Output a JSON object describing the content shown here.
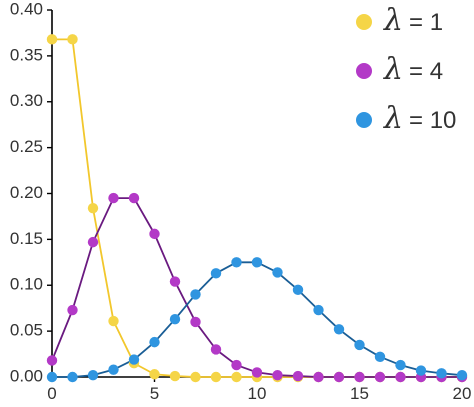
{
  "chart_data": {
    "type": "line",
    "title": "",
    "xlabel": "",
    "ylabel": "",
    "xlim": [
      0,
      20
    ],
    "ylim": [
      0,
      0.4
    ],
    "xticks": [
      0,
      5,
      10,
      15,
      20
    ],
    "xtick_labels": [
      "0",
      "5",
      "10",
      "15",
      "20"
    ],
    "yticks": [
      0,
      0.05,
      0.1,
      0.15,
      0.2,
      0.25,
      0.3,
      0.35,
      0.4
    ],
    "ytick_labels": [
      "0.00",
      "0.05",
      "0.10",
      "0.15",
      "0.20",
      "0.25",
      "0.30",
      "0.35",
      "0.40"
    ],
    "grid": false,
    "legend_position": "top-right",
    "x": [
      0,
      1,
      2,
      3,
      4,
      5,
      6,
      7,
      8,
      9,
      10,
      11,
      12,
      13,
      14,
      15,
      16,
      17,
      18,
      19,
      20
    ],
    "series": [
      {
        "name": "λ = 1",
        "symbol": "λ",
        "eq": "= 1",
        "color": "#f5d547",
        "line_color": "#f2c72c",
        "values": [
          0.368,
          0.368,
          0.184,
          0.061,
          0.015,
          0.003,
          0.001,
          0.0,
          0.0,
          0.0,
          0.0,
          0.0,
          0.0,
          0.0,
          0.0,
          0.0,
          0.0,
          0.0,
          0.0,
          0.0,
          0.0
        ]
      },
      {
        "name": "λ = 4",
        "symbol": "λ",
        "eq": "= 4",
        "color": "#b339c7",
        "line_color": "#6a1a80",
        "values": [
          0.018,
          0.073,
          0.147,
          0.195,
          0.195,
          0.156,
          0.104,
          0.06,
          0.03,
          0.013,
          0.005,
          0.002,
          0.001,
          0.0,
          0.0,
          0.0,
          0.0,
          0.0,
          0.0,
          0.0,
          0.0
        ]
      },
      {
        "name": "λ = 10",
        "symbol": "λ",
        "eq": "= 10",
        "color": "#2f95e0",
        "line_color": "#1a5e96",
        "values": [
          0.0,
          0.0,
          0.002,
          0.008,
          0.019,
          0.038,
          0.063,
          0.09,
          0.113,
          0.125,
          0.125,
          0.114,
          0.095,
          0.073,
          0.052,
          0.035,
          0.022,
          0.013,
          0.007,
          0.004,
          0.002
        ]
      }
    ]
  }
}
